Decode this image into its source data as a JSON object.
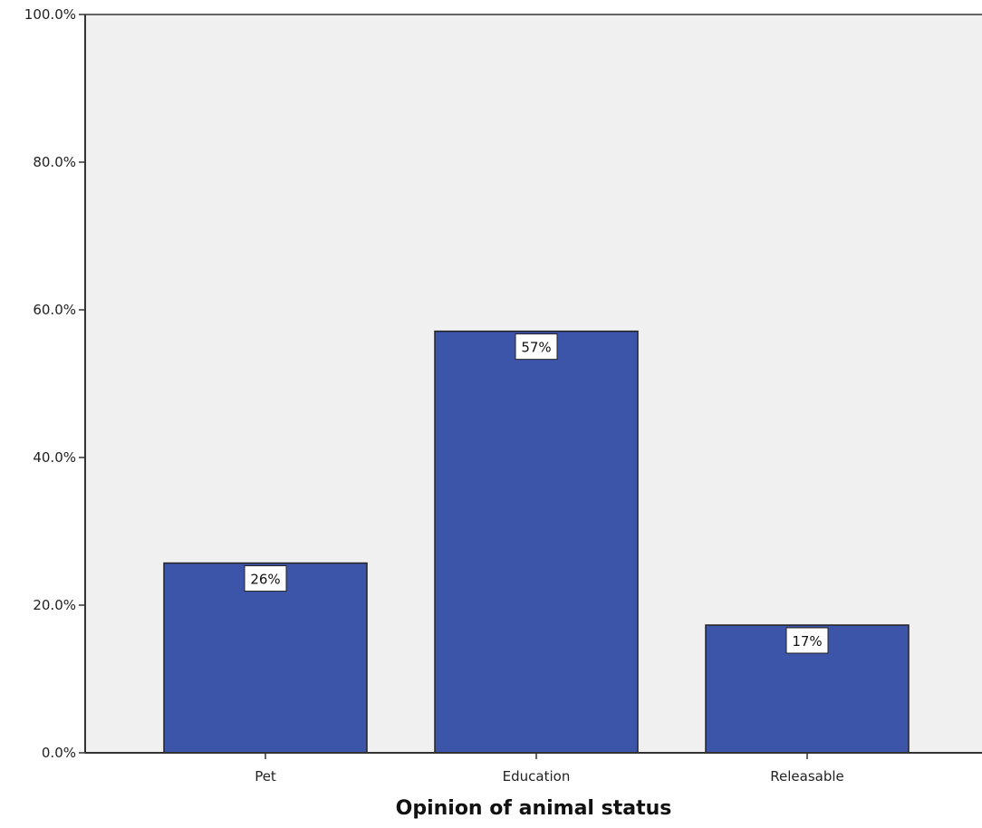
{
  "chart_data": {
    "type": "bar",
    "title": "",
    "xlabel": "Opinion of animal status",
    "ylabel": "",
    "categories": [
      "Pet",
      "Education",
      "Releasable"
    ],
    "values": [
      25.7,
      57.1,
      17.3
    ],
    "data_labels": [
      "26%",
      "57%",
      "17%"
    ],
    "ylim": [
      0,
      100
    ],
    "yticks": [
      0,
      20,
      40,
      60,
      80,
      100
    ],
    "ytick_labels": [
      "0.0%",
      "20.0%",
      "40.0%",
      "60.0%",
      "80.0%",
      "100.0%"
    ],
    "grid": false,
    "legend": "none",
    "colors": {
      "bar": "#3d55a8",
      "plot_background": "#f0f0f0",
      "axis": "#333333"
    }
  }
}
